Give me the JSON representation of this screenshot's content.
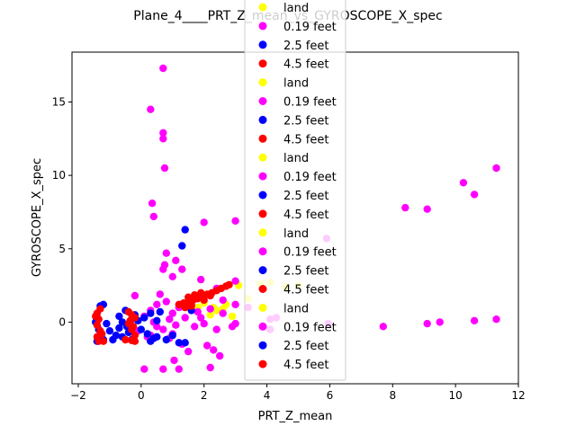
{
  "chart_data": {
    "type": "scatter",
    "title": "Plane_4____PRT_Z_mean_vs_GYROSCOPE_X_spec",
    "xlabel": "PRT_Z_mean",
    "ylabel": "GYROSCOPE_X_spec",
    "xlim": [
      -2.2,
      12.0
    ],
    "ylim": [
      -4.2,
      18.4
    ],
    "xticks": [
      -2,
      0,
      2,
      4,
      6,
      8,
      10,
      12
    ],
    "yticks": [
      0,
      5,
      10,
      15
    ],
    "grid": false,
    "legend_position": "upper-center",
    "legend": [
      {
        "label": "land",
        "color": "#ffff00"
      },
      {
        "label": "0.19 feet",
        "color": "#ff00ff"
      },
      {
        "label": "2.5 feet",
        "color": "#0000ff"
      },
      {
        "label": "4.5 feet",
        "color": "#ff0000"
      },
      {
        "label": "land",
        "color": "#ffff00"
      },
      {
        "label": "0.19 feet",
        "color": "#ff00ff"
      },
      {
        "label": "2.5 feet",
        "color": "#0000ff"
      },
      {
        "label": "4.5 feet",
        "color": "#ff0000"
      },
      {
        "label": "land",
        "color": "#ffff00"
      },
      {
        "label": "0.19 feet",
        "color": "#ff00ff"
      },
      {
        "label": "2.5 feet",
        "color": "#0000ff"
      },
      {
        "label": "4.5 feet",
        "color": "#ff0000"
      },
      {
        "label": "land",
        "color": "#ffff00"
      },
      {
        "label": "0.19 feet",
        "color": "#ff00ff"
      },
      {
        "label": "2.5 feet",
        "color": "#0000ff"
      },
      {
        "label": "4.5 feet",
        "color": "#ff0000"
      },
      {
        "label": "land",
        "color": "#ffff00"
      },
      {
        "label": "0.19 feet",
        "color": "#ff00ff"
      },
      {
        "label": "2.5 feet",
        "color": "#0000ff"
      },
      {
        "label": "4.5 feet",
        "color": "#ff0000"
      }
    ],
    "series": [
      {
        "name": "land",
        "color": "#ffff00",
        "points": [
          [
            2.2,
            0.5
          ],
          [
            2.4,
            0.8
          ],
          [
            2.7,
            1.2
          ],
          [
            2.9,
            0.4
          ],
          [
            3.1,
            2.5
          ],
          [
            2.6,
            0.9
          ],
          [
            1.8,
            1.0
          ],
          [
            2.0,
            1.3
          ],
          [
            2.3,
            1.0
          ],
          [
            3.4,
            1.6
          ],
          [
            3.8,
            2.6
          ],
          [
            4.1,
            2.7
          ],
          [
            4.6,
            2.4
          ],
          [
            5.0,
            2.5
          ]
        ]
      },
      {
        "name": "0.19 feet",
        "color": "#ff00ff",
        "points": [
          [
            0.7,
            17.3
          ],
          [
            0.3,
            14.5
          ],
          [
            0.7,
            12.9
          ],
          [
            0.7,
            12.5
          ],
          [
            0.75,
            10.5
          ],
          [
            0.35,
            8.1
          ],
          [
            0.4,
            7.2
          ],
          [
            2.0,
            6.8
          ],
          [
            3.0,
            6.9
          ],
          [
            0.8,
            4.7
          ],
          [
            0.7,
            3.6
          ],
          [
            0.75,
            3.9
          ],
          [
            1.1,
            4.2
          ],
          [
            1.0,
            3.1
          ],
          [
            1.3,
            3.6
          ],
          [
            1.9,
            2.9
          ],
          [
            2.4,
            2.3
          ],
          [
            3.0,
            2.8
          ],
          [
            -0.2,
            1.8
          ],
          [
            0.1,
            0.4
          ],
          [
            0.3,
            0.8
          ],
          [
            0.5,
            1.2
          ],
          [
            0.6,
            1.9
          ],
          [
            0.8,
            1.4
          ],
          [
            1.0,
            0.6
          ],
          [
            1.2,
            1.0
          ],
          [
            1.4,
            0.3
          ],
          [
            1.6,
            1.2
          ],
          [
            1.8,
            0.7
          ],
          [
            2.0,
            -0.1
          ],
          [
            2.2,
            0.9
          ],
          [
            2.4,
            -0.5
          ],
          [
            2.6,
            1.5
          ],
          [
            3.0,
            1.2
          ],
          [
            2.1,
            -1.6
          ],
          [
            2.3,
            -1.9
          ],
          [
            1.0,
            -0.8
          ],
          [
            1.3,
            -1.5
          ],
          [
            0.9,
            -1.1
          ],
          [
            1.5,
            -2.0
          ],
          [
            2.5,
            -2.3
          ],
          [
            0.1,
            -3.2
          ],
          [
            0.7,
            -3.2
          ],
          [
            1.2,
            -3.2
          ],
          [
            2.2,
            -3.1
          ],
          [
            1.05,
            -2.6
          ],
          [
            0.5,
            -0.3
          ],
          [
            0.3,
            -0.9
          ],
          [
            0.7,
            -0.5
          ],
          [
            1.7,
            -0.3
          ],
          [
            2.9,
            -0.3
          ],
          [
            3.0,
            -0.1
          ],
          [
            3.4,
            1.0
          ],
          [
            4.1,
            0.2
          ],
          [
            4.1,
            -0.5
          ],
          [
            4.3,
            0.3
          ],
          [
            5.9,
            5.7
          ],
          [
            5.95,
            -0.1
          ],
          [
            7.7,
            -0.3
          ],
          [
            8.4,
            7.8
          ],
          [
            9.1,
            7.7
          ],
          [
            9.1,
            -0.1
          ],
          [
            9.5,
            0.0
          ],
          [
            10.25,
            9.5
          ],
          [
            10.6,
            8.7
          ],
          [
            10.6,
            0.1
          ],
          [
            11.3,
            10.5
          ],
          [
            11.3,
            0.2
          ],
          [
            -0.1,
            -0.6
          ],
          [
            0.2,
            -1.0
          ],
          [
            0.4,
            0.0
          ],
          [
            0.9,
            0.2
          ],
          [
            1.1,
            -0.2
          ],
          [
            1.9,
            0.3
          ],
          [
            2.6,
            0.6
          ]
        ]
      },
      {
        "name": "2.5 feet",
        "color": "#0000ff",
        "points": [
          [
            1.4,
            6.3
          ],
          [
            1.3,
            5.2
          ],
          [
            -1.3,
            1.1
          ],
          [
            -1.2,
            1.2
          ],
          [
            -1.4,
            0.3
          ],
          [
            -1.45,
            0.0
          ],
          [
            -1.35,
            -0.5
          ],
          [
            -1.3,
            -0.9
          ],
          [
            -1.4,
            -1.3
          ],
          [
            -1.2,
            -1.2
          ],
          [
            -1.1,
            -0.1
          ],
          [
            -0.9,
            -1.2
          ],
          [
            -0.8,
            -0.9
          ],
          [
            -0.7,
            -0.4
          ],
          [
            -0.6,
            0.0
          ],
          [
            -0.7,
            0.4
          ],
          [
            -0.5,
            0.8
          ],
          [
            -0.4,
            -0.7
          ],
          [
            -0.3,
            -1.2
          ],
          [
            -0.2,
            0.5
          ],
          [
            -0.1,
            0.1
          ],
          [
            0.0,
            -0.5
          ],
          [
            0.1,
            0.3
          ],
          [
            0.2,
            -0.8
          ],
          [
            0.3,
            0.6
          ],
          [
            0.5,
            -1.0
          ],
          [
            0.5,
            0.1
          ],
          [
            0.6,
            0.7
          ],
          [
            0.8,
            -1.2
          ],
          [
            0.3,
            -1.3
          ],
          [
            0.4,
            -1.1
          ],
          [
            1.2,
            -1.4
          ],
          [
            1.4,
            -1.4
          ],
          [
            1.6,
            0.8
          ],
          [
            -0.45,
            -0.3
          ],
          [
            -0.3,
            0.2
          ],
          [
            -1.0,
            -0.6
          ],
          [
            -0.6,
            -1.0
          ],
          [
            1.0,
            -0.9
          ]
        ]
      },
      {
        "name": "4.5 feet",
        "color": "#ff0000",
        "points": [
          [
            1.2,
            1.2
          ],
          [
            1.35,
            1.3
          ],
          [
            1.5,
            1.4
          ],
          [
            1.65,
            1.5
          ],
          [
            1.8,
            1.6
          ],
          [
            1.95,
            1.75
          ],
          [
            2.1,
            1.9
          ],
          [
            2.25,
            2.0
          ],
          [
            2.4,
            2.15
          ],
          [
            2.55,
            2.3
          ],
          [
            2.7,
            2.45
          ],
          [
            2.8,
            2.55
          ],
          [
            1.5,
            1.7
          ],
          [
            1.7,
            1.85
          ],
          [
            1.9,
            2.0
          ],
          [
            2.0,
            1.5
          ],
          [
            1.4,
            1.0
          ],
          [
            1.6,
            1.1
          ],
          [
            2.2,
            1.8
          ],
          [
            -0.4,
            0.7
          ],
          [
            -0.3,
            0.5
          ],
          [
            -0.2,
            0.3
          ],
          [
            -0.4,
            -0.1
          ],
          [
            -0.3,
            -0.5
          ],
          [
            -0.2,
            -0.9
          ],
          [
            -0.5,
            -1.2
          ],
          [
            -0.3,
            -1.25
          ],
          [
            -0.2,
            -1.3
          ],
          [
            -0.35,
            0.1
          ],
          [
            -0.25,
            -0.3
          ],
          [
            -1.4,
            0.6
          ],
          [
            -1.35,
            0.2
          ],
          [
            -1.4,
            -0.2
          ],
          [
            -1.3,
            -0.6
          ],
          [
            -1.4,
            -1.0
          ],
          [
            -1.35,
            -1.3
          ],
          [
            -1.2,
            -1.3
          ],
          [
            -1.3,
            0.9
          ],
          [
            -1.45,
            0.4
          ],
          [
            -1.25,
            -0.8
          ]
        ]
      }
    ]
  }
}
